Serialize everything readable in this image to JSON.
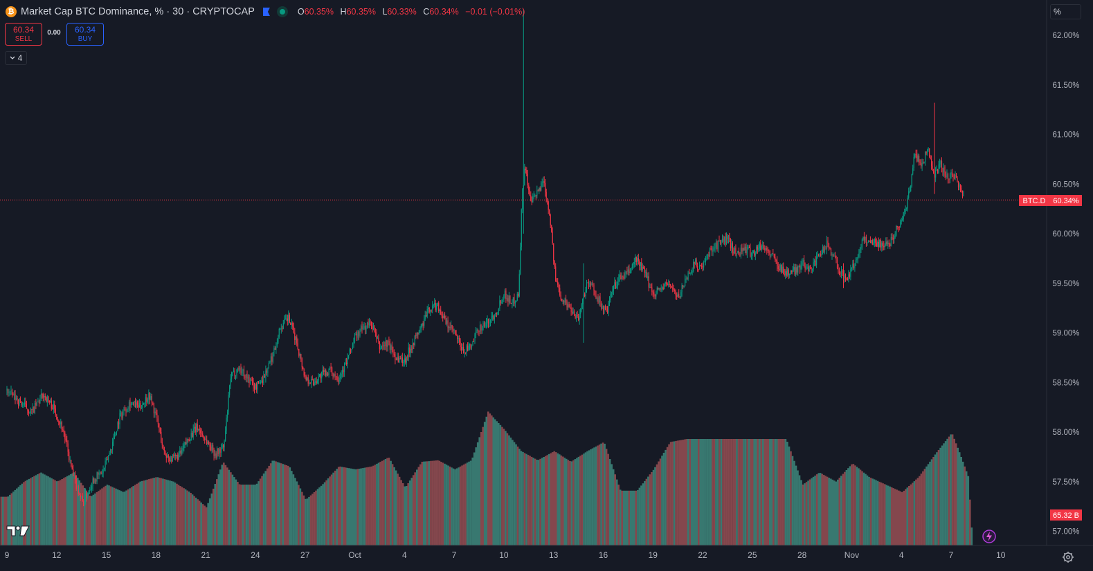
{
  "legend": {
    "title": "Market Cap BTC Dominance, % · 30 · CRYPTOCAP",
    "coin_glyph": "₿",
    "ohlc": [
      {
        "key": "O",
        "value": "60.35%"
      },
      {
        "key": "H",
        "value": "60.35%"
      },
      {
        "key": "L",
        "value": "60.33%"
      },
      {
        "key": "C",
        "value": "60.34%"
      }
    ],
    "change": "−0.01 (−0.01%)"
  },
  "trade": {
    "sell_price": "60.34",
    "sell_label": "SELL",
    "spread": "0.00",
    "buy_price": "60.34",
    "buy_label": "BUY"
  },
  "indicators_toggle": "4",
  "scale_mode": "%",
  "price_tag": {
    "symbol": "BTC.D",
    "value": "60.34%"
  },
  "volume_tag": "65.32 B",
  "colors": {
    "up": "#089981",
    "down": "#f23645",
    "background": "#161a25",
    "volume": "#7a7f89"
  },
  "chart_data": {
    "type": "candlestick",
    "title": "Market Cap BTC Dominance, % · 30 · CRYPTOCAP",
    "y_unit": "%",
    "ylim": [
      56.85,
      62.3
    ],
    "yticks": [
      "62.00%",
      "61.50%",
      "61.00%",
      "60.50%",
      "60.00%",
      "59.50%",
      "59.00%",
      "58.50%",
      "58.00%",
      "57.50%",
      "57.00%"
    ],
    "ytick_values": [
      62.0,
      61.5,
      61.0,
      60.5,
      60.0,
      59.5,
      59.0,
      58.5,
      58.0,
      57.5,
      57.0
    ],
    "xticks": [
      "9",
      "12",
      "15",
      "18",
      "21",
      "24",
      "27",
      "Oct",
      "4",
      "7",
      "10",
      "13",
      "16",
      "19",
      "22",
      "25",
      "28",
      "Nov",
      "4",
      "7",
      "10"
    ],
    "xtick_days": [
      0,
      3,
      6,
      9,
      12,
      15,
      18,
      21,
      24,
      27,
      30,
      33,
      36,
      39,
      42,
      45,
      48,
      51,
      54,
      57,
      60
    ],
    "x_range_days": [
      -0.4,
      61.5
    ],
    "last_price": 60.34,
    "price_path": [
      [
        0.0,
        58.42
      ],
      [
        0.8,
        58.3
      ],
      [
        1.5,
        58.2
      ],
      [
        2.2,
        58.38
      ],
      [
        2.8,
        58.25
      ],
      [
        3.4,
        58.02
      ],
      [
        4.0,
        57.55
      ],
      [
        4.6,
        57.28
      ],
      [
        5.2,
        57.52
      ],
      [
        5.8,
        57.6
      ],
      [
        6.3,
        57.85
      ],
      [
        6.8,
        58.15
      ],
      [
        7.4,
        58.3
      ],
      [
        8.0,
        58.25
      ],
      [
        8.6,
        58.38
      ],
      [
        9.1,
        58.1
      ],
      [
        9.5,
        57.78
      ],
      [
        10.0,
        57.72
      ],
      [
        10.5,
        57.78
      ],
      [
        11.0,
        57.95
      ],
      [
        11.5,
        58.05
      ],
      [
        12.0,
        57.92
      ],
      [
        12.6,
        57.78
      ],
      [
        13.1,
        57.85
      ],
      [
        13.5,
        58.55
      ],
      [
        14.0,
        58.65
      ],
      [
        14.5,
        58.55
      ],
      [
        15.0,
        58.45
      ],
      [
        15.5,
        58.55
      ],
      [
        16.0,
        58.75
      ],
      [
        16.5,
        59.05
      ],
      [
        17.0,
        59.15
      ],
      [
        17.5,
        58.9
      ],
      [
        18.0,
        58.55
      ],
      [
        18.5,
        58.5
      ],
      [
        19.0,
        58.58
      ],
      [
        19.5,
        58.62
      ],
      [
        20.0,
        58.55
      ],
      [
        20.5,
        58.7
      ],
      [
        21.0,
        58.95
      ],
      [
        21.5,
        59.05
      ],
      [
        22.0,
        59.1
      ],
      [
        22.5,
        58.85
      ],
      [
        23.0,
        58.9
      ],
      [
        23.5,
        58.75
      ],
      [
        24.0,
        58.72
      ],
      [
        24.5,
        58.9
      ],
      [
        25.0,
        59.05
      ],
      [
        25.5,
        59.25
      ],
      [
        26.0,
        59.28
      ],
      [
        26.5,
        59.1
      ],
      [
        27.0,
        59.0
      ],
      [
        27.5,
        58.82
      ],
      [
        28.0,
        58.85
      ],
      [
        28.5,
        59.05
      ],
      [
        29.0,
        59.1
      ],
      [
        29.5,
        59.2
      ],
      [
        30.0,
        59.4
      ],
      [
        30.5,
        59.3
      ],
      [
        30.9,
        59.4
      ],
      [
        31.1,
        60.4
      ],
      [
        31.3,
        60.7
      ],
      [
        31.6,
        60.3
      ],
      [
        32.0,
        60.4
      ],
      [
        32.4,
        60.55
      ],
      [
        32.8,
        60.15
      ],
      [
        33.1,
        59.55
      ],
      [
        33.5,
        59.35
      ],
      [
        34.0,
        59.25
      ],
      [
        34.5,
        59.15
      ],
      [
        35.0,
        59.5
      ],
      [
        35.4,
        59.45
      ],
      [
        35.8,
        59.3
      ],
      [
        36.2,
        59.2
      ],
      [
        36.6,
        59.45
      ],
      [
        37.0,
        59.55
      ],
      [
        37.5,
        59.6
      ],
      [
        38.0,
        59.75
      ],
      [
        38.5,
        59.6
      ],
      [
        39.0,
        59.4
      ],
      [
        39.5,
        59.45
      ],
      [
        40.0,
        59.5
      ],
      [
        40.5,
        59.35
      ],
      [
        41.0,
        59.55
      ],
      [
        41.5,
        59.7
      ],
      [
        42.0,
        59.65
      ],
      [
        42.5,
        59.85
      ],
      [
        43.0,
        59.9
      ],
      [
        43.5,
        59.95
      ],
      [
        44.0,
        59.8
      ],
      [
        44.5,
        59.85
      ],
      [
        45.0,
        59.8
      ],
      [
        45.5,
        59.88
      ],
      [
        46.0,
        59.82
      ],
      [
        46.5,
        59.7
      ],
      [
        47.0,
        59.6
      ],
      [
        47.5,
        59.62
      ],
      [
        48.0,
        59.7
      ],
      [
        48.5,
        59.65
      ],
      [
        49.0,
        59.75
      ],
      [
        49.5,
        59.9
      ],
      [
        50.0,
        59.75
      ],
      [
        50.3,
        59.6
      ],
      [
        50.7,
        59.55
      ],
      [
        51.2,
        59.7
      ],
      [
        51.7,
        59.95
      ],
      [
        52.2,
        59.92
      ],
      [
        52.7,
        59.9
      ],
      [
        53.2,
        59.88
      ],
      [
        53.7,
        60.05
      ],
      [
        54.2,
        60.2
      ],
      [
        54.5,
        60.45
      ],
      [
        54.8,
        60.8
      ],
      [
        55.2,
        60.7
      ],
      [
        55.6,
        60.85
      ],
      [
        56.0,
        60.6
      ],
      [
        56.4,
        60.7
      ],
      [
        56.8,
        60.55
      ],
      [
        57.2,
        60.6
      ],
      [
        57.5,
        60.48
      ],
      [
        57.8,
        60.34
      ]
    ],
    "wicks": [
      {
        "day": 31.2,
        "high": 62.25,
        "low": 60.0
      },
      {
        "day": 56.0,
        "high": 61.32,
        "low": 60.4
      },
      {
        "day": 34.8,
        "high": 59.7,
        "low": 58.9
      },
      {
        "day": 50.5,
        "high": 59.7,
        "low": 59.45
      }
    ],
    "volume": {
      "unit": "B",
      "last": 65.32,
      "path": [
        [
          0,
          32
        ],
        [
          1.0,
          42
        ],
        [
          2.0,
          48
        ],
        [
          3.0,
          42
        ],
        [
          4.0,
          48
        ],
        [
          5.0,
          32
        ],
        [
          6.0,
          40
        ],
        [
          7.0,
          35
        ],
        [
          8.0,
          42
        ],
        [
          9.0,
          45
        ],
        [
          10.0,
          42
        ],
        [
          11.0,
          35
        ],
        [
          12.0,
          25
        ],
        [
          13.0,
          55
        ],
        [
          14.0,
          40
        ],
        [
          15.0,
          40
        ],
        [
          16.0,
          56
        ],
        [
          17.0,
          52
        ],
        [
          18.0,
          30
        ],
        [
          19.0,
          40
        ],
        [
          20.0,
          52
        ],
        [
          21.0,
          50
        ],
        [
          22.0,
          52
        ],
        [
          23.0,
          58
        ],
        [
          24.0,
          38
        ],
        [
          25.0,
          55
        ],
        [
          26.0,
          56
        ],
        [
          27.0,
          50
        ],
        [
          28.0,
          56
        ],
        [
          29.0,
          88
        ],
        [
          30.0,
          76
        ],
        [
          31.0,
          62
        ],
        [
          32.0,
          56
        ],
        [
          33.0,
          62
        ],
        [
          34.0,
          55
        ],
        [
          35.0,
          62
        ],
        [
          36.0,
          68
        ],
        [
          37.0,
          36
        ],
        [
          38.0,
          36
        ],
        [
          39.0,
          50
        ],
        [
          40.0,
          68
        ],
        [
          41.0,
          70
        ],
        [
          42.0,
          70
        ],
        [
          43.0,
          70
        ],
        [
          44.0,
          70
        ],
        [
          45.0,
          70
        ],
        [
          46.0,
          70
        ],
        [
          47.0,
          70
        ],
        [
          48.0,
          40
        ],
        [
          49.0,
          48
        ],
        [
          50.0,
          42
        ],
        [
          51.0,
          54
        ],
        [
          52.0,
          45
        ],
        [
          53.0,
          40
        ],
        [
          54.0,
          35
        ],
        [
          55.0,
          45
        ],
        [
          56.0,
          60
        ],
        [
          57.0,
          74
        ],
        [
          57.5,
          60
        ],
        [
          58.0,
          45
        ],
        [
          58.2,
          10
        ]
      ]
    }
  }
}
